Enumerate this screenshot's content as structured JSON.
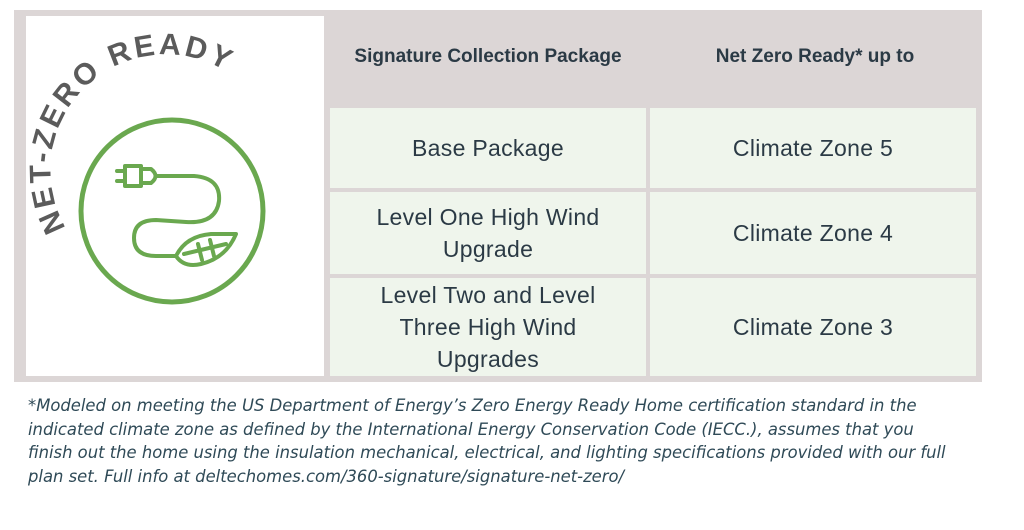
{
  "logo": {
    "text": "NET-ZERO READY",
    "color": "#6aa84f",
    "text_color": "#5b5b5b",
    "icon": "plug-leaf-icon"
  },
  "table": {
    "headers": [
      "Signature Collection Package",
      "Net Zero Ready* up to"
    ],
    "rows": [
      {
        "package": "Base Package",
        "zone": "Climate Zone 5"
      },
      {
        "package": "Level One High Wind Upgrade",
        "zone": "Climate Zone 4"
      },
      {
        "package": "Level Two and Level Three High Wind Upgrades",
        "zone": "Climate Zone 3"
      }
    ],
    "header_bg": "#dcd6d6",
    "cell_bg": "#eff5ec"
  },
  "footnote": "*Modeled on meeting the US Department of Energy’s Zero Energy Ready Home certification standard in the indicated climate zone as defined by the International Energy Conservation Code (IECC.), assumes that you finish out the home using the insulation mechanical, electrical, and lighting specifications provided with our full plan set.  Full info at deltechomes.com/360-signature/signature-net-zero/"
}
